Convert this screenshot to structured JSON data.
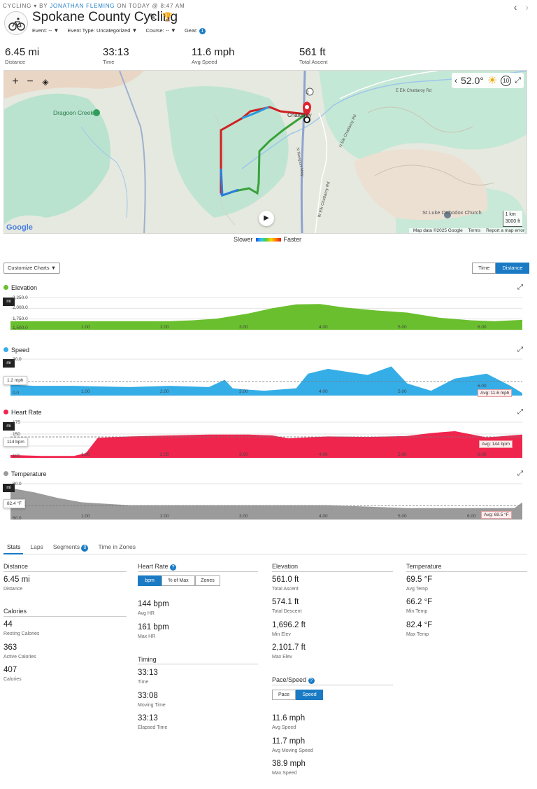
{
  "header": {
    "category": "CYCLING",
    "by": "BY",
    "author": "JONATHAN FLEMING",
    "when": "ON TODAY @ 8:47 AM",
    "title": "Spokane County Cycling",
    "meta": {
      "event": "Event: --",
      "event_type": "Event Type: Uncategorized",
      "course": "Course: --",
      "gear": "Gear:",
      "gear_count": "1"
    },
    "nav_prev": "‹",
    "nav_next": "›"
  },
  "summary": [
    {
      "value": "6.45 mi",
      "label": "Distance"
    },
    {
      "value": "33:13",
      "label": "Time"
    },
    {
      "value": "11.6 mph",
      "label": "Avg Speed"
    },
    {
      "value": "561 ft",
      "label": "Total Ascent"
    }
  ],
  "map": {
    "zoom_in": "+",
    "zoom_out": "−",
    "temperature": "52.0°",
    "wind": "10",
    "labels": {
      "dragoon_creek": "Dragoon Creek",
      "chattaroy": "Chattaroy",
      "e_elk_chattaroy": "E Elk Chattaroy Rd",
      "n_elk_chattaroy": "N Elk Chattaroy Rd",
      "n_newport": "N Newport Hwy",
      "w_elk_chattaroy": "W Elk Chattaroy Rd",
      "church": "St Luke Orthodox Church",
      "route": "2"
    },
    "scale_km": "1 km",
    "scale_ft": "3000 ft",
    "google": "Google",
    "map_data": "Map data ©2025 Google",
    "terms": "Terms",
    "report": "Report a map error",
    "legend_slow": "Slower",
    "legend_fast": "Faster"
  },
  "charts_controls": {
    "customize": "Customize Charts",
    "time": "Time",
    "distance": "Distance"
  },
  "charts": {
    "elevation": {
      "title": "Elevation",
      "unit": "mi",
      "color": "#6abf2e"
    },
    "speed": {
      "title": "Speed",
      "unit": "mi",
      "color": "#35aee8",
      "tooltip": "1.2 mph",
      "avg": "Avg: 11.6 mph"
    },
    "heart": {
      "title": "Heart Rate",
      "unit": "mi",
      "color": "#f0254e",
      "tooltip": "114 bpm",
      "avg": "Avg: 144 bpm"
    },
    "temp": {
      "title": "Temperature",
      "unit": "mi",
      "color": "#9b9b9b",
      "tooltip": "82.4 °F",
      "avg": "Avg: 69.5 °F"
    }
  },
  "chart_data": [
    {
      "type": "area",
      "title": "Elevation",
      "xlabel": "mi",
      "x_ticks": [
        "1.00",
        "2.00",
        "3.00",
        "4.00",
        "5.00",
        "6.00"
      ],
      "y_ticks": [
        "2,250.0",
        "2,000.0",
        "1,750.0",
        "1,500.0"
      ],
      "xlim": [
        0,
        6.45
      ],
      "ylim": [
        1500,
        2250
      ],
      "x": [
        0,
        0.5,
        1.0,
        1.5,
        2.0,
        2.3,
        2.6,
        3.0,
        3.3,
        3.6,
        3.9,
        4.2,
        4.6,
        5.0,
        5.4,
        5.8,
        6.1,
        6.45
      ],
      "y": [
        1700,
        1700,
        1700,
        1700,
        1700,
        1720,
        1760,
        1880,
        2000,
        2090,
        2100,
        2020,
        1950,
        1900,
        1780,
        1720,
        1700,
        1730
      ]
    },
    {
      "type": "area",
      "title": "Speed",
      "xlabel": "mi",
      "x_ticks": [
        "1.00",
        "2.00",
        "3.00",
        "4.00",
        "5.00",
        "6.00"
      ],
      "y_ticks": [
        "30.0",
        "0.0"
      ],
      "xlim": [
        0,
        6.45
      ],
      "ylim": [
        0,
        30
      ],
      "avg": 11.6,
      "avg_label": "Avg: 11.6 mph",
      "x": [
        0,
        0.3,
        0.8,
        1.5,
        2.0,
        2.5,
        2.7,
        2.8,
        2.95,
        3.2,
        3.6,
        3.75,
        4.0,
        4.5,
        4.8,
        5.0,
        5.3,
        5.6,
        6.0,
        6.3,
        6.45
      ],
      "y": [
        9,
        8,
        8,
        7,
        8,
        7,
        13,
        6,
        5,
        4,
        6,
        18,
        22,
        17,
        24,
        10,
        4,
        14,
        18,
        8,
        2
      ]
    },
    {
      "type": "area",
      "title": "Heart Rate",
      "xlabel": "mi",
      "x_ticks": [
        "1.00",
        "2.00",
        "3.00",
        "4.00",
        "5.00",
        "6.00"
      ],
      "y_ticks": [
        "175",
        "150",
        "125",
        "100"
      ],
      "xlim": [
        0,
        6.45
      ],
      "ylim": [
        100,
        175
      ],
      "avg": 144,
      "avg_label": "Avg: 144 bpm",
      "x": [
        0,
        0.4,
        0.8,
        0.95,
        1.1,
        1.5,
        2.0,
        2.5,
        3.0,
        3.3,
        3.5,
        4.0,
        4.5,
        5.0,
        5.3,
        5.6,
        6.0,
        6.45
      ],
      "y": [
        106,
        104,
        104,
        110,
        142,
        145,
        147,
        149,
        149,
        147,
        141,
        145,
        144,
        146,
        152,
        156,
        143,
        149
      ]
    },
    {
      "type": "area",
      "title": "Temperature",
      "xlabel": "mi",
      "x_ticks": [
        "1.00",
        "2.00",
        "3.00",
        "4.00",
        "5.00",
        "6.00"
      ],
      "y_ticks": [
        "80.0",
        "60.0"
      ],
      "xlim": [
        0,
        6.45
      ],
      "ylim": [
        60,
        85
      ],
      "avg": 69.5,
      "avg_label": "Avg: 69.5 °F",
      "x": [
        0,
        0.3,
        0.6,
        0.9,
        1.5,
        2.0,
        2.5,
        3.0,
        3.5,
        4.0,
        4.5,
        5.0,
        5.5,
        6.0,
        6.35,
        6.45
      ],
      "y": [
        82,
        79,
        75,
        72,
        70,
        70,
        70,
        70,
        70,
        70,
        69,
        68,
        68,
        68,
        68,
        72
      ]
    }
  ],
  "tabs": [
    {
      "label": "Stats"
    },
    {
      "label": "Laps"
    },
    {
      "label": "Segments",
      "count": "0"
    },
    {
      "label": "Time in Zones"
    }
  ],
  "stats": {
    "distance": {
      "title": "Distance",
      "value": "6.45 mi",
      "label": "Distance"
    },
    "calories": {
      "title": "Calories",
      "items": [
        {
          "value": "44",
          "label": "Resting Calories"
        },
        {
          "value": "363",
          "label": "Active Calories"
        },
        {
          "value": "407",
          "label": "Calories"
        }
      ]
    },
    "heart_rate": {
      "title": "Heart Rate",
      "help": "?",
      "seg": [
        "bpm",
        "% of Max",
        "Zones"
      ],
      "items": [
        {
          "value": "144 bpm",
          "label": "Avg HR"
        },
        {
          "value": "161 bpm",
          "label": "Max HR"
        }
      ]
    },
    "timing": {
      "title": "Timing",
      "items": [
        {
          "value": "33:13",
          "label": "Time"
        },
        {
          "value": "33:08",
          "label": "Moving Time"
        },
        {
          "value": "33:13",
          "label": "Elapsed Time"
        }
      ]
    },
    "elevation": {
      "title": "Elevation",
      "items": [
        {
          "value": "561.0 ft",
          "label": "Total Ascent"
        },
        {
          "value": "574.1 ft",
          "label": "Total Descent"
        },
        {
          "value": "1,696.2 ft",
          "label": "Min Elev"
        },
        {
          "value": "2,101.7 ft",
          "label": "Max Elev"
        }
      ]
    },
    "pace": {
      "title": "Pace/Speed",
      "help": "?",
      "seg": [
        "Pace",
        "Speed"
      ],
      "items": [
        {
          "value": "11.6 mph",
          "label": "Avg Speed"
        },
        {
          "value": "11.7 mph",
          "label": "Avg Moving Speed"
        },
        {
          "value": "38.9 mph",
          "label": "Max Speed"
        }
      ]
    },
    "temperature": {
      "title": "Temperature",
      "items": [
        {
          "value": "69.5 °F",
          "label": "Avg Temp"
        },
        {
          "value": "66.2 °F",
          "label": "Min Temp"
        },
        {
          "value": "82.4 °F",
          "label": "Max Temp"
        }
      ]
    }
  }
}
